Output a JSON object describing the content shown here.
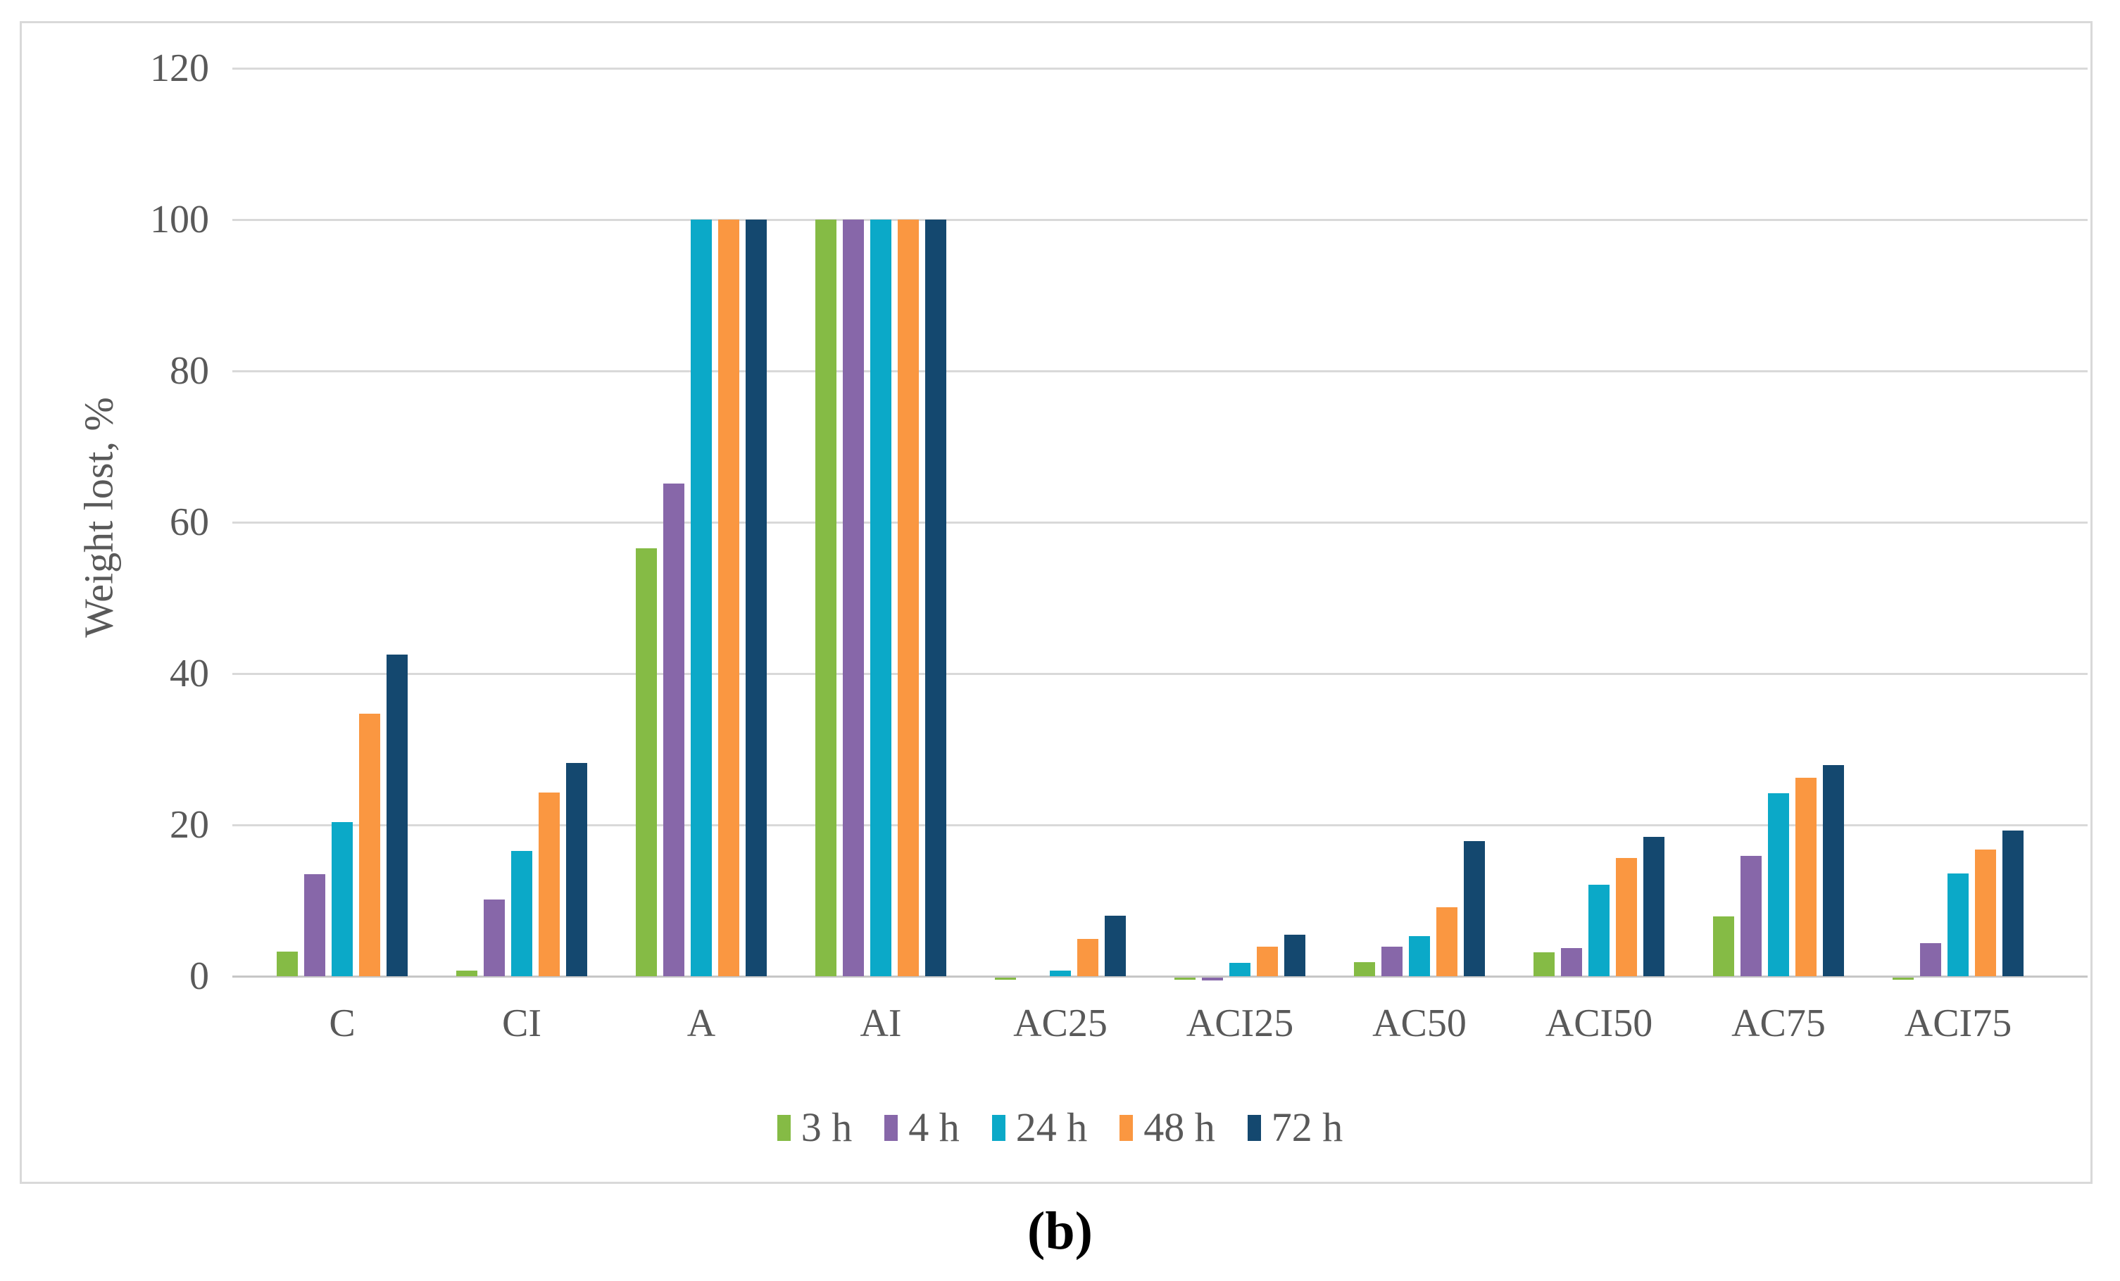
{
  "figure": {
    "caption": "(b)"
  },
  "chart_data": {
    "type": "bar",
    "title": "",
    "xlabel": "",
    "ylabel": "Weight lost, %",
    "categories": [
      "C",
      "CI",
      "A",
      "AI",
      "AC25",
      "ACI25",
      "AC50",
      "ACI50",
      "AC75",
      "ACI75"
    ],
    "series": [
      {
        "name": "3 h",
        "color": "#85BB45",
        "values": [
          3.3,
          0.7,
          56.6,
          100,
          -0.3,
          -0.3,
          1.9,
          3.2,
          7.9,
          -0.3
        ]
      },
      {
        "name": "4 h",
        "color": "#8767A9",
        "values": [
          13.5,
          10.1,
          65.1,
          100,
          0,
          -0.4,
          3.9,
          3.7,
          15.9,
          4.4
        ]
      },
      {
        "name": "24 h",
        "color": "#0BA9C8",
        "values": [
          20.4,
          16.6,
          100,
          100,
          0.7,
          1.8,
          5.3,
          12.1,
          24.2,
          13.6
        ]
      },
      {
        "name": "48 h",
        "color": "#FA9741",
        "values": [
          34.7,
          24.3,
          100,
          100,
          4.9,
          3.9,
          9.1,
          15.6,
          26.2,
          16.7
        ]
      },
      {
        "name": "72 h",
        "color": "#14486F",
        "values": [
          42.5,
          28.2,
          100,
          100,
          8.0,
          5.5,
          17.9,
          18.4,
          27.9,
          19.3
        ]
      }
    ],
    "ylim": [
      0,
      120
    ],
    "yticks": [
      0,
      20,
      40,
      60,
      80,
      100,
      120
    ],
    "grid": "horizontal",
    "legend_position": "bottom",
    "colors": {
      "grid": "#D9D9D9",
      "axis_text": "#595959",
      "frame_border": "#D9D9D9",
      "caption_text": "#000000"
    }
  }
}
